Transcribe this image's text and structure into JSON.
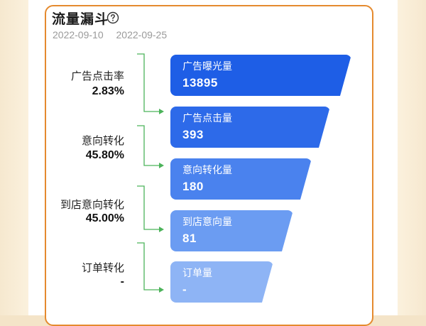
{
  "header": {
    "title": "流量漏斗",
    "date_start": "2022-09-10",
    "date_end": "2022-09-25"
  },
  "funnel": {
    "stages": [
      {
        "name": "广告曝光量",
        "value": "13895",
        "color": "#1e5ee6"
      },
      {
        "name": "广告点击量",
        "value": "393",
        "color": "#2d6ae9"
      },
      {
        "name": "意向转化量",
        "value": "180",
        "color": "#4a82ee"
      },
      {
        "name": "到店意向量",
        "value": "81",
        "color": "#6b9cf2"
      },
      {
        "name": "订单量",
        "value": "-",
        "color": "#8eb4f5"
      }
    ],
    "rates": [
      {
        "label": "广告点击率",
        "value": "2.83%"
      },
      {
        "label": "意向转化",
        "value": "45.80%"
      },
      {
        "label": "到店意向转化",
        "value": "45.00%"
      },
      {
        "label": "订单转化",
        "value": "-"
      }
    ],
    "connector_color": "#4cb35a"
  },
  "icons": {
    "help": "question-circle-icon"
  }
}
